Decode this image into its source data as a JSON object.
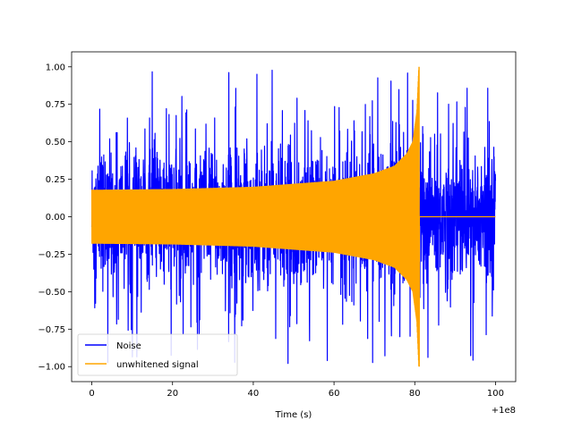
{
  "chart_data": {
    "type": "line",
    "title": "",
    "xlabel": "Time (s)",
    "ylabel": "",
    "x_offset_label": "+1e8",
    "xlim": [
      -5,
      105
    ],
    "ylim": [
      -1.1,
      1.1
    ],
    "x_ticks": [
      0,
      20,
      40,
      60,
      80,
      100
    ],
    "x_tick_labels": [
      "0",
      "20",
      "40",
      "60",
      "80",
      "100"
    ],
    "y_ticks": [
      -1.0,
      -0.75,
      -0.5,
      -0.25,
      0.0,
      0.25,
      0.5,
      0.75,
      1.0
    ],
    "y_tick_labels": [
      "−1.00",
      "−0.75",
      "−0.50",
      "−0.25",
      "0.00",
      "0.25",
      "0.50",
      "0.75",
      "1.00"
    ],
    "grid": false,
    "legend_position": "lower-left",
    "series": [
      {
        "name": "Noise",
        "color": "#0000ff",
        "x_range": [
          0,
          100
        ],
        "typical_amplitude": 0.45,
        "peak_amplitude": 0.98
      },
      {
        "name": "unwhitened signal",
        "color": "#ffa500",
        "x_range": [
          0,
          100
        ],
        "envelope_x": [
          0,
          20,
          40,
          60,
          70,
          75,
          78,
          79.5,
          80.5,
          81,
          100
        ],
        "envelope_y": [
          0.18,
          0.185,
          0.2,
          0.24,
          0.29,
          0.34,
          0.42,
          0.5,
          0.7,
          1.0,
          0.0
        ]
      }
    ]
  }
}
